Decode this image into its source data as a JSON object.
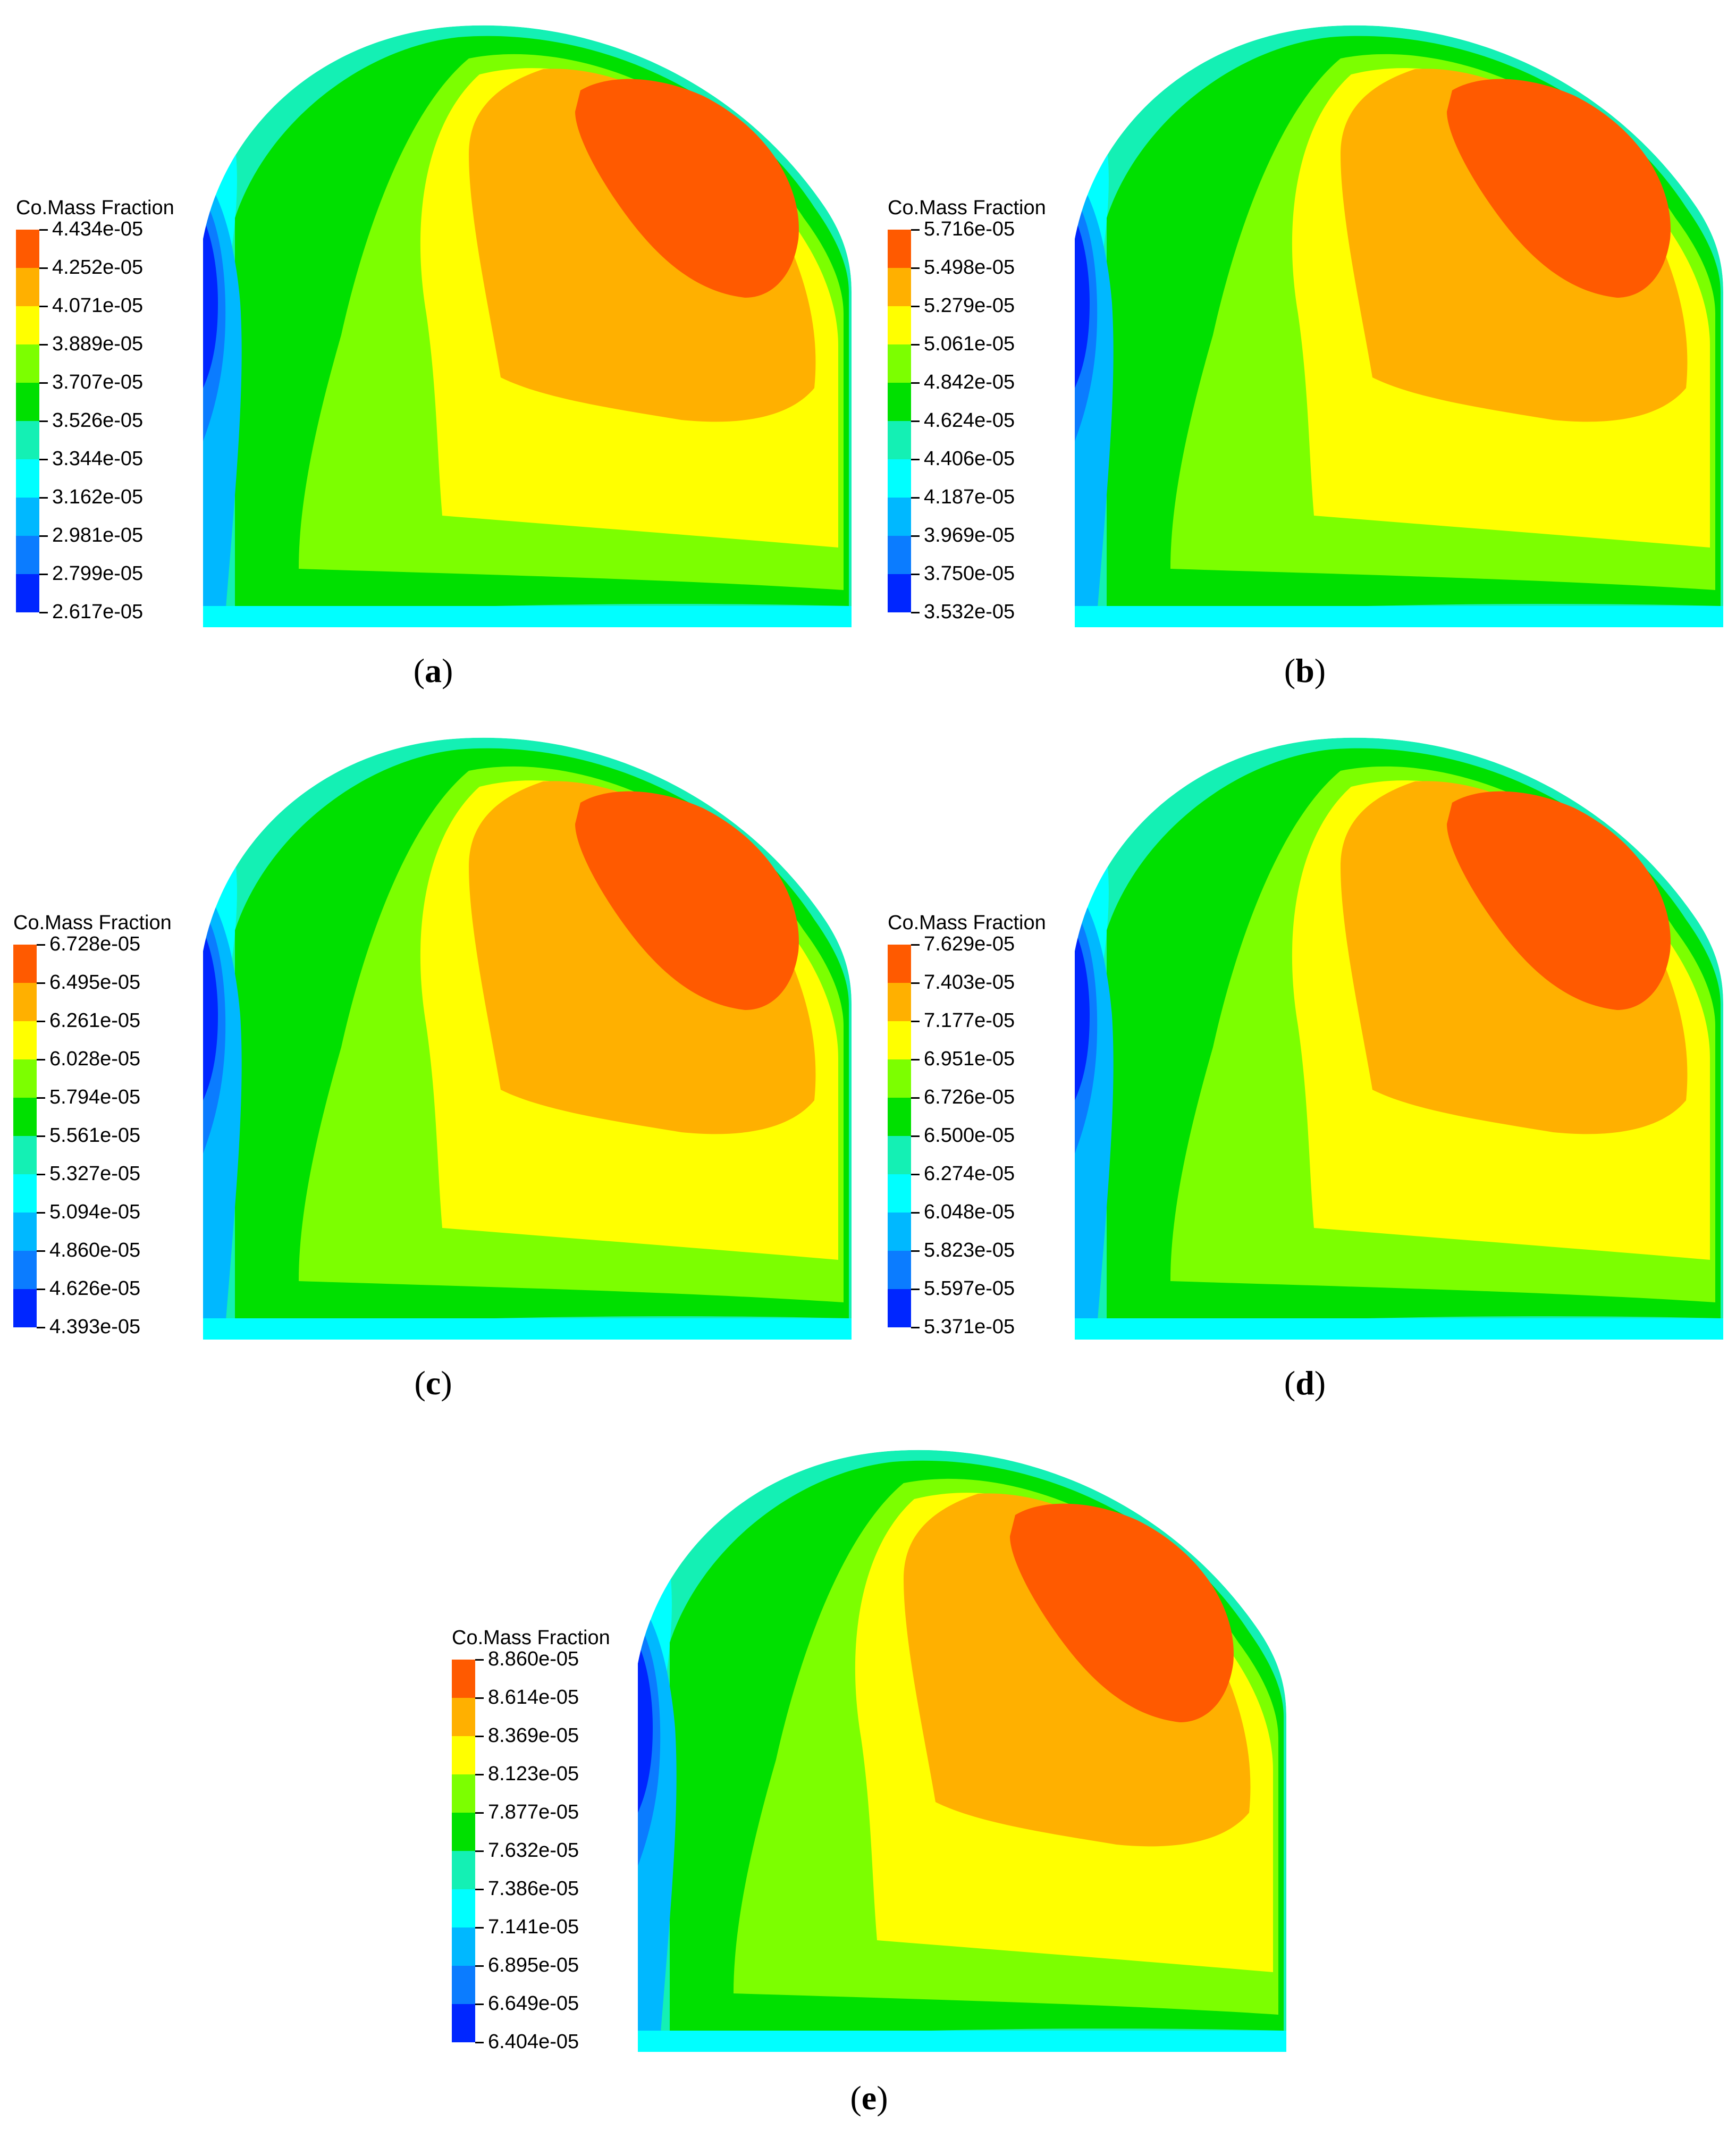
{
  "colormap": [
    "#0026ff",
    "#0b7cff",
    "#00b8ff",
    "#00ffff",
    "#14f0b4",
    "#00e000",
    "#7cff00",
    "#ffff00",
    "#ffb000",
    "#ff5a00"
  ],
  "panels": [
    {
      "id": "a",
      "label": "a",
      "legend_title": "Co.Mass Fraction",
      "legend_values": [
        "4.434e-05",
        "4.252e-05",
        "4.071e-05",
        "3.889e-05",
        "3.707e-05",
        "3.526e-05",
        "3.344e-05",
        "3.162e-05",
        "2.981e-05",
        "2.799e-05",
        "2.617e-05"
      ]
    },
    {
      "id": "b",
      "label": "b",
      "legend_title": "Co.Mass Fraction",
      "legend_values": [
        "5.716e-05",
        "5.498e-05",
        "5.279e-05",
        "5.061e-05",
        "4.842e-05",
        "4.624e-05",
        "4.406e-05",
        "4.187e-05",
        "3.969e-05",
        "3.750e-05",
        "3.532e-05"
      ]
    },
    {
      "id": "c",
      "label": "c",
      "legend_title": "Co.Mass Fraction",
      "legend_values": [
        "6.728e-05",
        "6.495e-05",
        "6.261e-05",
        "6.028e-05",
        "5.794e-05",
        "5.561e-05",
        "5.327e-05",
        "5.094e-05",
        "4.860e-05",
        "4.626e-05",
        "4.393e-05"
      ]
    },
    {
      "id": "d",
      "label": "d",
      "legend_title": "Co.Mass Fraction",
      "legend_values": [
        "7.629e-05",
        "7.403e-05",
        "7.177e-05",
        "6.951e-05",
        "6.726e-05",
        "6.500e-05",
        "6.274e-05",
        "6.048e-05",
        "5.823e-05",
        "5.597e-05",
        "5.371e-05"
      ]
    },
    {
      "id": "e",
      "label": "e",
      "legend_title": "Co.Mass Fraction",
      "legend_values": [
        "8.860e-05",
        "8.614e-05",
        "8.369e-05",
        "8.123e-05",
        "7.877e-05",
        "7.632e-05",
        "7.386e-05",
        "7.141e-05",
        "6.895e-05",
        "6.649e-05",
        "6.404e-05"
      ]
    }
  ],
  "chart_data": [
    {
      "type": "heatmap",
      "title": "Co.Mass Fraction",
      "panel": "a",
      "min": "2.617e-05",
      "max": "4.434e-05",
      "levels": 11
    },
    {
      "type": "heatmap",
      "title": "Co.Mass Fraction",
      "panel": "b",
      "min": "3.532e-05",
      "max": "5.716e-05",
      "levels": 11
    },
    {
      "type": "heatmap",
      "title": "Co.Mass Fraction",
      "panel": "c",
      "min": "4.393e-05",
      "max": "6.728e-05",
      "levels": 11
    },
    {
      "type": "heatmap",
      "title": "Co.Mass Fraction",
      "panel": "d",
      "min": "5.371e-05",
      "max": "7.629e-05",
      "levels": 11
    },
    {
      "type": "heatmap",
      "title": "Co.Mass Fraction",
      "panel": "e",
      "min": "6.404e-05",
      "max": "8.860e-05",
      "levels": 11
    }
  ]
}
